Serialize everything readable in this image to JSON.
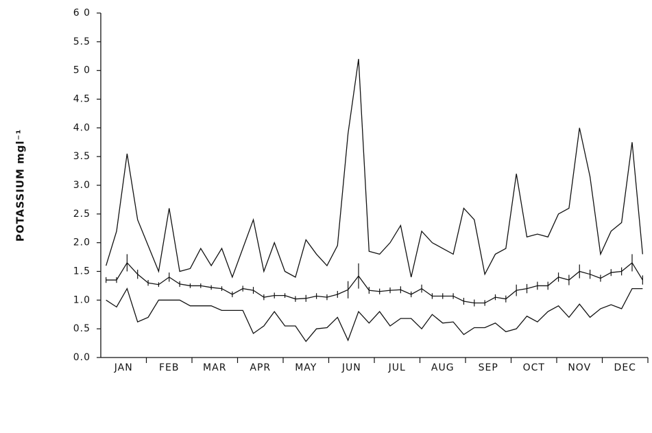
{
  "chart_data": {
    "type": "line",
    "y_label": "POTASSIUM mgl⁻¹",
    "categories": [
      "JAN",
      "FEB",
      "MAR",
      "APR",
      "MAY",
      "JUN",
      "JUL",
      "AUG",
      "SEP",
      "OCT",
      "NOV",
      "DEC"
    ],
    "x": [
      1,
      2,
      3,
      4,
      5,
      6,
      7,
      8,
      9,
      10,
      11,
      12,
      13,
      14,
      15,
      16,
      17,
      18,
      19,
      20,
      21,
      22,
      23,
      24,
      25,
      26,
      27,
      28,
      29,
      30,
      31,
      32,
      33,
      34,
      35,
      36,
      37,
      38,
      39,
      40,
      41,
      42,
      43,
      44,
      45,
      46,
      47,
      48,
      49,
      50,
      51,
      52
    ],
    "xlim": [
      0.5,
      52.5
    ],
    "ylim": [
      0,
      6
    ],
    "yticks": [
      {
        "value": 0,
        "label": "0.0"
      },
      {
        "value": 0.5,
        "label": "0.5"
      },
      {
        "value": 1,
        "label": "1.0"
      },
      {
        "value": 1.5,
        "label": "1.5"
      },
      {
        "value": 2,
        "label": "2.0"
      },
      {
        "value": 2.5,
        "label": "2.5"
      },
      {
        "value": 3,
        "label": "3.0"
      },
      {
        "value": 3.5,
        "label": "3.5"
      },
      {
        "value": 4,
        "label": "4.0"
      },
      {
        "value": 4.5,
        "label": "4.5"
      },
      {
        "value": 5,
        "label": "5 0"
      },
      {
        "value": 5.5,
        "label": "5.5"
      },
      {
        "value": 6,
        "label": "6 0"
      }
    ],
    "series": [
      {
        "color": "#111111",
        "values": [
          1.6,
          2.2,
          3.55,
          2.4,
          1.95,
          1.5,
          2.6,
          1.5,
          1.55,
          1.9,
          1.6,
          1.9,
          1.4,
          1.9,
          2.4,
          1.5,
          2.0,
          1.5,
          1.4,
          2.05,
          1.8,
          1.6,
          1.95,
          3.9,
          5.2,
          1.85,
          1.8,
          2.0,
          2.3,
          1.4,
          2.2,
          2.0,
          1.9,
          1.8,
          2.6,
          2.4,
          1.45,
          1.8,
          1.9,
          3.2,
          2.1,
          2.15,
          2.1,
          2.5,
          2.6,
          4.0,
          3.15,
          1.8,
          2.2,
          2.35,
          3.75,
          1.8
        ]
      },
      {
        "color": "#111111",
        "values": [
          1.35,
          1.35,
          1.65,
          1.45,
          1.3,
          1.27,
          1.4,
          1.28,
          1.25,
          1.25,
          1.22,
          1.2,
          1.1,
          1.2,
          1.17,
          1.05,
          1.08,
          1.08,
          1.02,
          1.03,
          1.07,
          1.05,
          1.1,
          1.18,
          1.42,
          1.17,
          1.15,
          1.17,
          1.18,
          1.1,
          1.2,
          1.07,
          1.07,
          1.07,
          0.98,
          0.95,
          0.95,
          1.05,
          1.02,
          1.17,
          1.2,
          1.25,
          1.25,
          1.4,
          1.35,
          1.5,
          1.45,
          1.38,
          1.48,
          1.5,
          1.65,
          1.35
        ],
        "errors": [
          0.05,
          0.05,
          0.15,
          0.08,
          0.05,
          0.04,
          0.08,
          0.05,
          0.04,
          0.04,
          0.04,
          0.04,
          0.05,
          0.05,
          0.06,
          0.05,
          0.05,
          0.04,
          0.05,
          0.06,
          0.05,
          0.05,
          0.06,
          0.15,
          0.22,
          0.06,
          0.05,
          0.05,
          0.06,
          0.05,
          0.07,
          0.05,
          0.05,
          0.05,
          0.06,
          0.06,
          0.05,
          0.05,
          0.06,
          0.1,
          0.08,
          0.07,
          0.07,
          0.08,
          0.09,
          0.12,
          0.08,
          0.06,
          0.06,
          0.07,
          0.15,
          0.08
        ]
      },
      {
        "color": "#111111",
        "values": [
          1.0,
          0.88,
          1.2,
          0.62,
          0.7,
          1.0,
          1.0,
          1.0,
          0.9,
          0.9,
          0.9,
          0.82,
          0.82,
          0.82,
          0.42,
          0.55,
          0.8,
          0.55,
          0.55,
          0.28,
          0.5,
          0.52,
          0.7,
          0.3,
          0.8,
          0.6,
          0.8,
          0.55,
          0.68,
          0.68,
          0.5,
          0.75,
          0.6,
          0.62,
          0.4,
          0.52,
          0.52,
          0.6,
          0.45,
          0.5,
          0.72,
          0.62,
          0.8,
          0.9,
          0.7,
          0.93,
          0.7,
          0.85,
          0.92,
          0.85,
          1.2,
          1.2
        ]
      }
    ]
  }
}
